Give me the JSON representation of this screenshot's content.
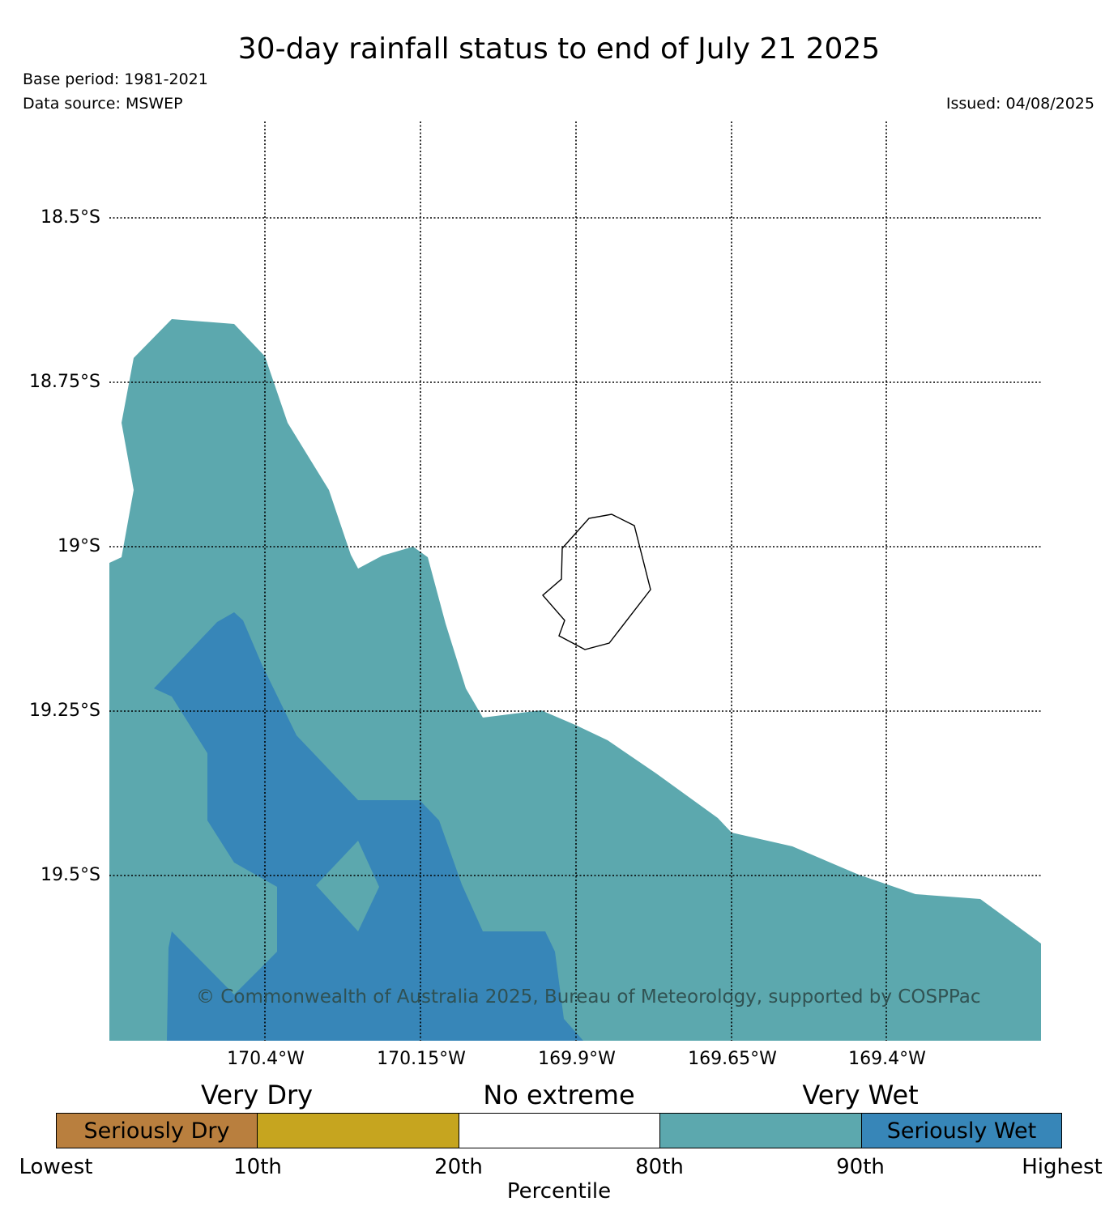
{
  "title": "30-day rainfall status to end of July 21 2025",
  "base_period": "Base period: 1981-2021",
  "data_source": "Data source: MSWEP",
  "issued": "Issued: 04/08/2025",
  "watermark": "© Commonwealth of Australia 2025, Bureau of Meteorology, supported by COSPPac",
  "lat_labels": [
    "18.5°S",
    "18.75°S",
    "19°S",
    "19.25°S",
    "19.5°S"
  ],
  "lon_labels": [
    "170.4°W",
    "170.15°W",
    "169.9°W",
    "169.65°W",
    "169.4°W"
  ],
  "legend": {
    "categories": [
      "Very Dry",
      "No extreme",
      "Very Wet"
    ],
    "bands": [
      {
        "label": "Seriously Dry",
        "color": "#b97f3e"
      },
      {
        "label": "",
        "color": "#c6a51f"
      },
      {
        "label": "",
        "color": "#ffffff"
      },
      {
        "label": "",
        "color": "#5ca8ae"
      },
      {
        "label": "Seriously Wet",
        "color": "#3786b8"
      }
    ],
    "ticks": [
      "Lowest",
      "10th",
      "20th",
      "80th",
      "90th",
      "Highest"
    ],
    "xlabel": "Percentile"
  },
  "colors": {
    "very_wet": "#5ca8ae",
    "seriously_wet": "#3786b8"
  }
}
